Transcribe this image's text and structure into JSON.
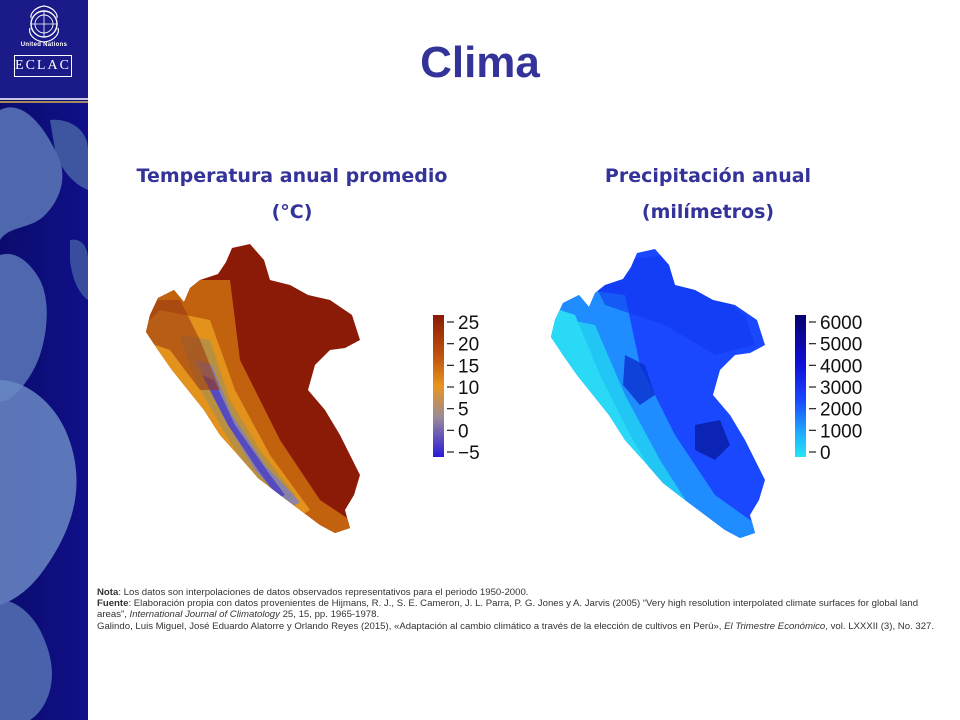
{
  "title": "Clima",
  "logo": {
    "org_name": "United Nations",
    "acronym": "ECLAC"
  },
  "panels": {
    "temperature": {
      "title_line1": "Temperatura anual promedio",
      "title_line2": "(°C)",
      "legend_ticks": [
        "25",
        "20",
        "15",
        "10",
        "5",
        "0",
        "−5"
      ],
      "colors": {
        "high": "#8b1a06",
        "mid": "#e8951e",
        "low": "#2a1ad8"
      }
    },
    "precipitation": {
      "title_line1": "Precipitación anual",
      "title_line2": "(milímetros)",
      "legend_ticks": [
        "6000",
        "5000",
        "4000",
        "3000",
        "2000",
        "1000",
        "0"
      ],
      "colors": {
        "high": "#06006e",
        "mid": "#1a48ff",
        "low": "#22d9f5"
      }
    }
  },
  "notes": {
    "nota_label": "Nota",
    "nota_text": ": Los datos son interpolaciones de datos observados representativos para el periodo 1950-2000.",
    "fuente_label": "Fuente",
    "fuente_text_1": ": Elaboración propia con datos provenientes de Hijmans, R. J., S. E. Cameron, J. L. Parra, P. G. Jones y A. Jarvis (2005) “Very high resolution interpolated climate surfaces for global land areas”, ",
    "fuente_journal": "International Journal of Climatology",
    "fuente_text_2": " 25, 15, pp. 1965-1978.",
    "galindo_text_1": "Galindo, Luis Miguel, José Eduardo Alatorre y Orlando Reyes (2015), «Adaptación al cambio climático a través de la elección de cultivos en Perú», ",
    "galindo_journal": "El Trimestre Económico",
    "galindo_text_2": ", vol. LXXXII (3), No. 327."
  }
}
